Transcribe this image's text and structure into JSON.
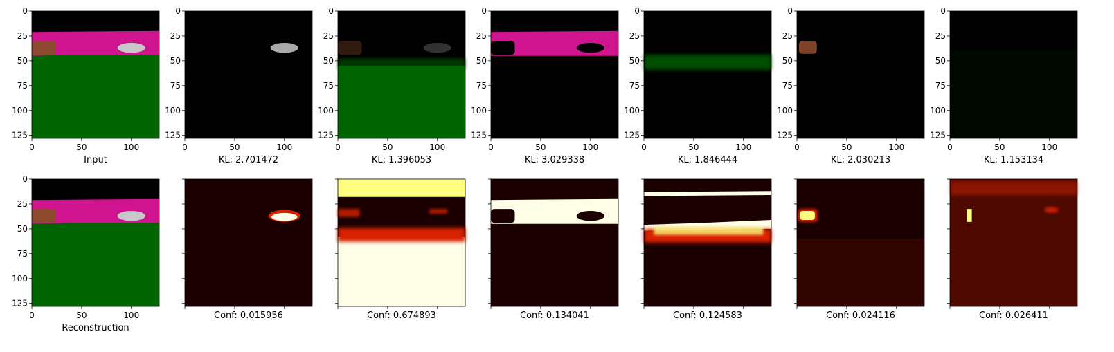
{
  "chart_data": {
    "type": "image-grid",
    "x_ticks": [
      "0",
      "50",
      "100"
    ],
    "y_ticks": [
      "0",
      "25",
      "50",
      "75",
      "100",
      "125"
    ],
    "top_row": [
      {
        "xlabel": "Input"
      },
      {
        "xlabel": "KL: 2.701472"
      },
      {
        "xlabel": "KL: 1.396053"
      },
      {
        "xlabel": "KL: 3.029338"
      },
      {
        "xlabel": "KL: 1.846444"
      },
      {
        "xlabel": "KL: 2.030213"
      },
      {
        "xlabel": "KL: 1.153134"
      }
    ],
    "bottom_row": [
      {
        "xlabel": "Reconstruction"
      },
      {
        "xlabel": "Conf: 0.015956"
      },
      {
        "xlabel": "Conf: 0.674893"
      },
      {
        "xlabel": "Conf: 0.134041"
      },
      {
        "xlabel": "Conf: 0.124583"
      },
      {
        "xlabel": "Conf: 0.024116"
      },
      {
        "xlabel": "Conf: 0.026411"
      }
    ],
    "colors": {
      "sky": "#000000",
      "wall_magenta": "#d0148f",
      "ground_green": "#006400",
      "box_brown": "#8b4a2e",
      "car_gray": "#c8c8c8",
      "heat_low": "#1a0000",
      "heat_mid": "#d92000",
      "heat_high": "#ffff80",
      "heat_max": "#ffffe8"
    }
  }
}
